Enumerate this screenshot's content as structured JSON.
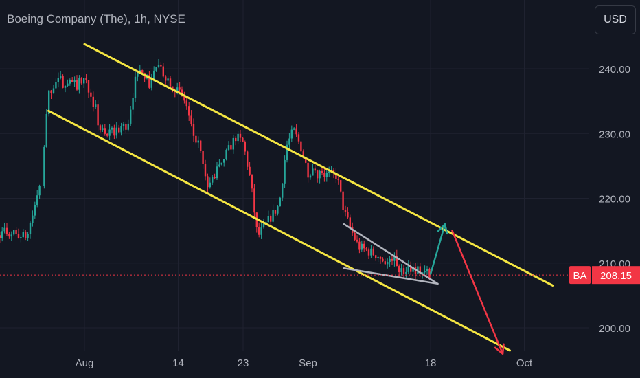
{
  "header": {
    "title": "Boeing Company (The), 1h, NYSE",
    "currency_button": "USD"
  },
  "chart_data": {
    "type": "candlestick",
    "title": "Boeing Company (The), 1h, NYSE",
    "symbol": "BA",
    "last_price": "208.15",
    "currency": "USD",
    "y_axis": {
      "ticks": [
        "240.00",
        "230.00",
        "220.00",
        "210.00",
        "200.00"
      ],
      "ylim": [
        196,
        246
      ],
      "side": "right"
    },
    "x_axis": {
      "ticks": [
        "Aug",
        "14",
        "23",
        "Sep",
        "18",
        "Oct"
      ]
    },
    "price_path": [
      {
        "x": "Jul 18",
        "y": 213.5
      },
      {
        "x": "Jul 21",
        "y": 214.8
      },
      {
        "x": "Jul 24",
        "y": 214
      },
      {
        "x": "Jul 26",
        "y": 222.5
      },
      {
        "x": "Jul 27",
        "y": 236
      },
      {
        "x": "Jul 28",
        "y": 238
      },
      {
        "x": "Jul 31",
        "y": 237.5
      },
      {
        "x": "Aug 1",
        "y": 238.5
      },
      {
        "x": "Aug 2",
        "y": 236
      },
      {
        "x": "Aug 3",
        "y": 231
      },
      {
        "x": "Aug 4",
        "y": 229.5
      },
      {
        "x": "Aug 7",
        "y": 231.5
      },
      {
        "x": "Aug 8",
        "y": 238
      },
      {
        "x": "Aug 9",
        "y": 240
      },
      {
        "x": "Aug 10",
        "y": 237.5
      },
      {
        "x": "Aug 11",
        "y": 240.5
      },
      {
        "x": "Aug 14",
        "y": 236.5
      },
      {
        "x": "Aug 15",
        "y": 235
      },
      {
        "x": "Aug 16",
        "y": 230
      },
      {
        "x": "Aug 17",
        "y": 227.5
      },
      {
        "x": "Aug 18",
        "y": 221.5
      },
      {
        "x": "Aug 21",
        "y": 227.5
      },
      {
        "x": "Aug 22",
        "y": 229.5
      },
      {
        "x": "Aug 23",
        "y": 228.5
      },
      {
        "x": "Aug 24",
        "y": 223
      },
      {
        "x": "Aug 25",
        "y": 214
      },
      {
        "x": "Aug 28",
        "y": 219
      },
      {
        "x": "Aug 29",
        "y": 228
      },
      {
        "x": "Aug 30",
        "y": 230.5
      },
      {
        "x": "Aug 31",
        "y": 228
      },
      {
        "x": "Sep 1",
        "y": 224
      },
      {
        "x": "Sep 5",
        "y": 223.5
      },
      {
        "x": "Sep 6",
        "y": 218
      },
      {
        "x": "Sep 7",
        "y": 215
      },
      {
        "x": "Sep 8",
        "y": 212.5
      },
      {
        "x": "Sep 11",
        "y": 211
      },
      {
        "x": "Sep 12",
        "y": 210
      },
      {
        "x": "Sep 13",
        "y": 210.5
      },
      {
        "x": "Sep 14",
        "y": 208.5
      },
      {
        "x": "Sep 15",
        "y": 209.5
      },
      {
        "x": "Sep 18",
        "y": 208.15
      }
    ],
    "drawings": [
      {
        "name": "channel-upper-line",
        "color": "#f5e642",
        "from": {
          "x": "Aug 1",
          "y": 243.8
        },
        "to": {
          "x": "Oct 5",
          "y": 206.5
        }
      },
      {
        "name": "channel-lower-line",
        "color": "#f5e642",
        "from": {
          "x": "Jul 27",
          "y": 233.5
        },
        "to": {
          "x": "Sep 29",
          "y": 196.5
        }
      },
      {
        "name": "wedge-upper-line",
        "color": "#b2b5be",
        "from": {
          "x": "Sep 6",
          "y": 216
        },
        "to": {
          "x": "Sep 19",
          "y": 206.8
        }
      },
      {
        "name": "wedge-lower-line",
        "color": "#b2b5be",
        "from": {
          "x": "Sep 6",
          "y": 209.2
        },
        "to": {
          "x": "Sep 19",
          "y": 206.8
        }
      },
      {
        "name": "bullish-arrow",
        "color": "#26a69a",
        "from": {
          "x": "Sep 18",
          "y": 208.3
        },
        "to": {
          "x": "Sep 20",
          "y": 216
        }
      },
      {
        "name": "bearish-arrow",
        "color": "#f23645",
        "from": {
          "x": "Sep 21",
          "y": 215
        },
        "to": {
          "x": "Sep 28",
          "y": 196
        }
      }
    ],
    "grid": true,
    "colors": {
      "background": "#131722",
      "grid": "#1f2230",
      "up": "#26a69a",
      "down": "#f23645",
      "channel": "#f5e642",
      "wedge": "#b2b5be",
      "price_label": "#f23645",
      "axis_text": "#b2b5be"
    }
  }
}
